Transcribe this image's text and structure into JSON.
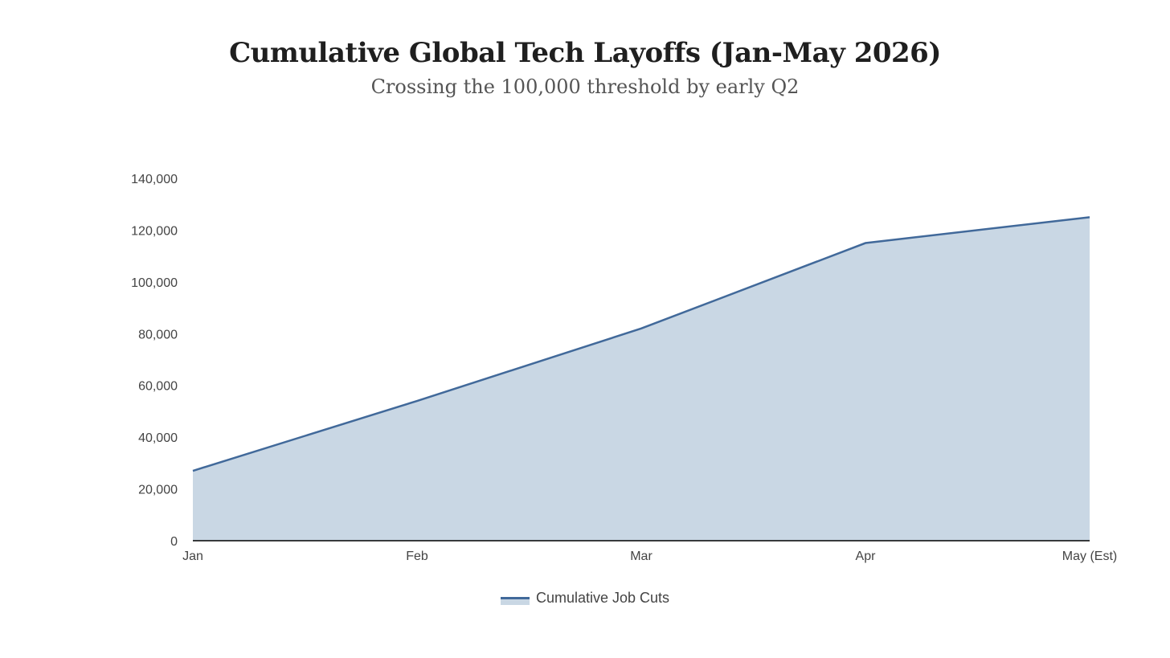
{
  "chart_data": {
    "type": "area",
    "title": "Cumulative Global Tech Layoffs (Jan-May 2026)",
    "subtitle": "Crossing the 100,000 threshold by early Q2",
    "categories": [
      "Jan",
      "Feb",
      "Mar",
      "Apr",
      "May (Est)"
    ],
    "series": [
      {
        "name": "Cumulative Job Cuts",
        "values": [
          27000,
          54000,
          82000,
          115000,
          125000
        ]
      }
    ],
    "ylim": [
      0,
      140000
    ],
    "yticks": [
      0,
      20000,
      40000,
      60000,
      80000,
      100000,
      120000,
      140000
    ],
    "ytick_labels": [
      "0",
      "20,000",
      "40,000",
      "60,000",
      "80,000",
      "100,000",
      "120,000",
      "140,000"
    ],
    "grid": false,
    "legend_position": "bottom-center",
    "colors": {
      "line": "#41699a",
      "fill": "#c9d7e4",
      "axis": "#000000"
    }
  }
}
